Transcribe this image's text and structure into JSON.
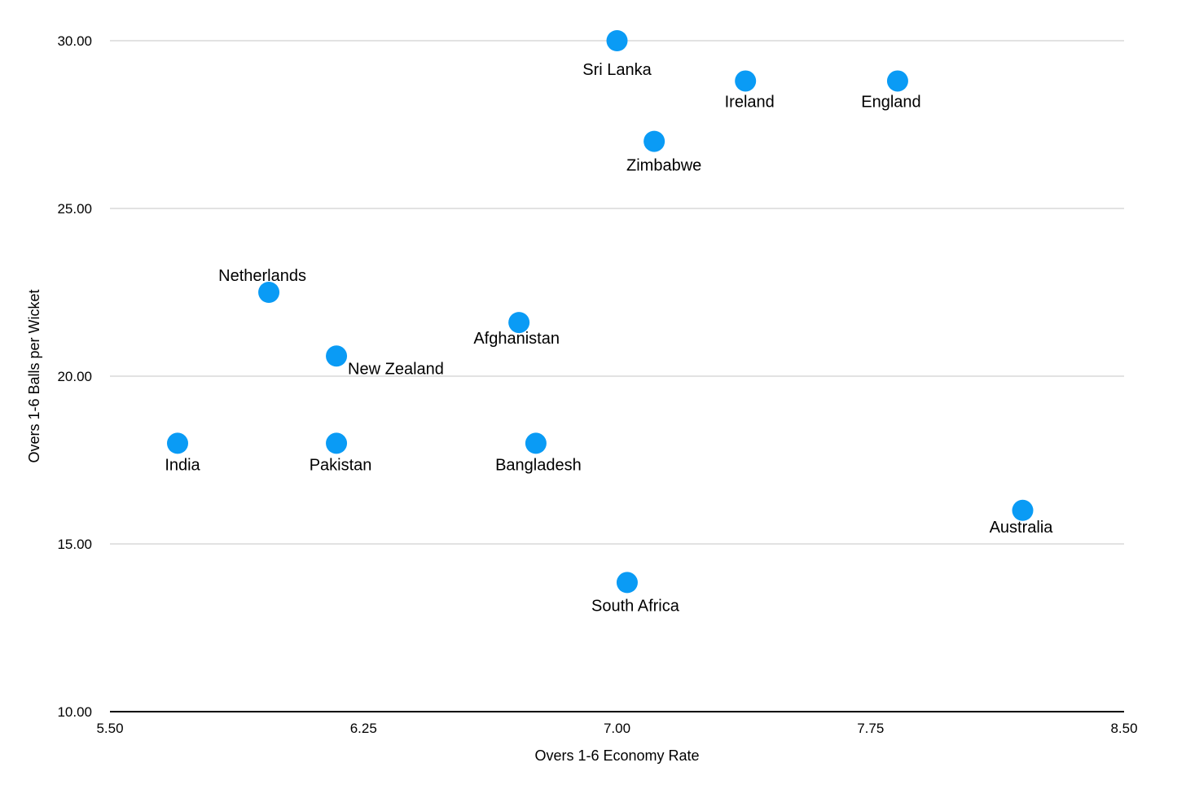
{
  "chart_data": {
    "type": "scatter",
    "xlabel": "Overs 1-6 Economy Rate",
    "ylabel": "Overs 1-6 Balls per Wicket",
    "xlim": [
      5.5,
      8.5
    ],
    "ylim": [
      10,
      30
    ],
    "x_ticks": [
      "5.50",
      "6.25",
      "7.00",
      "7.75",
      "8.50"
    ],
    "y_ticks": [
      "10.00",
      "15.00",
      "20.00",
      "25.00",
      "30.00"
    ],
    "grid": true,
    "point_color": "#0A9BF5",
    "points": [
      {
        "label": "Sri Lanka",
        "x": 7.0,
        "y": 30.0
      },
      {
        "label": "Ireland",
        "x": 7.38,
        "y": 28.8
      },
      {
        "label": "England",
        "x": 7.83,
        "y": 28.8
      },
      {
        "label": "Zimbabwe",
        "x": 7.11,
        "y": 27.0
      },
      {
        "label": "Netherlands",
        "x": 5.97,
        "y": 22.5
      },
      {
        "label": "Afghanistan",
        "x": 6.71,
        "y": 21.6
      },
      {
        "label": "New Zealand",
        "x": 6.17,
        "y": 20.6
      },
      {
        "label": "India",
        "x": 5.7,
        "y": 18.0
      },
      {
        "label": "Pakistan",
        "x": 6.17,
        "y": 18.0
      },
      {
        "label": "Bangladesh",
        "x": 6.76,
        "y": 18.0
      },
      {
        "label": "Australia",
        "x": 8.2,
        "y": 16.0
      },
      {
        "label": "South Africa",
        "x": 7.03,
        "y": 13.85
      }
    ]
  }
}
